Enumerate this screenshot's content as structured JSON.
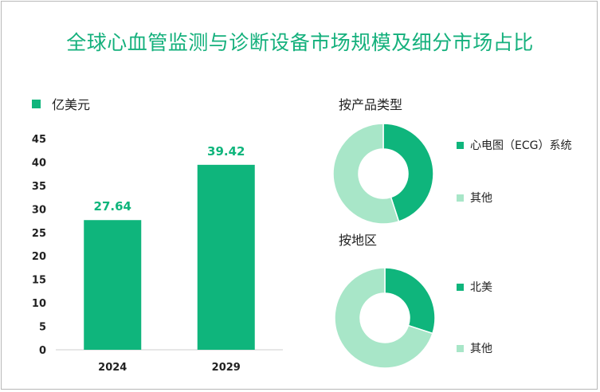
{
  "title": "全球心血管监测与诊断设备市场规模及细分市场占比",
  "colors": {
    "primary": "#0fb57c",
    "light": "#a8e6c8",
    "title": "#14b07c"
  },
  "chart_data": [
    {
      "type": "bar",
      "legend": "亿美元",
      "categories": [
        "2024",
        "2029"
      ],
      "values": [
        27.64,
        39.42
      ],
      "value_labels": [
        "27.64",
        "39.42"
      ],
      "ylim": [
        0,
        45
      ],
      "yticks": [
        "0",
        "5",
        "10",
        "15",
        "20",
        "25",
        "30",
        "35",
        "40",
        "45"
      ],
      "grid": false
    },
    {
      "type": "pie",
      "donut": true,
      "title": "按产品类型",
      "labels": [
        "心电图（ECG）系统",
        "其他"
      ],
      "values": [
        0.45,
        0.55
      ]
    },
    {
      "type": "pie",
      "donut": true,
      "title": "按地区",
      "labels": [
        "北美",
        "其他"
      ],
      "values": [
        0.3,
        0.7
      ]
    }
  ]
}
